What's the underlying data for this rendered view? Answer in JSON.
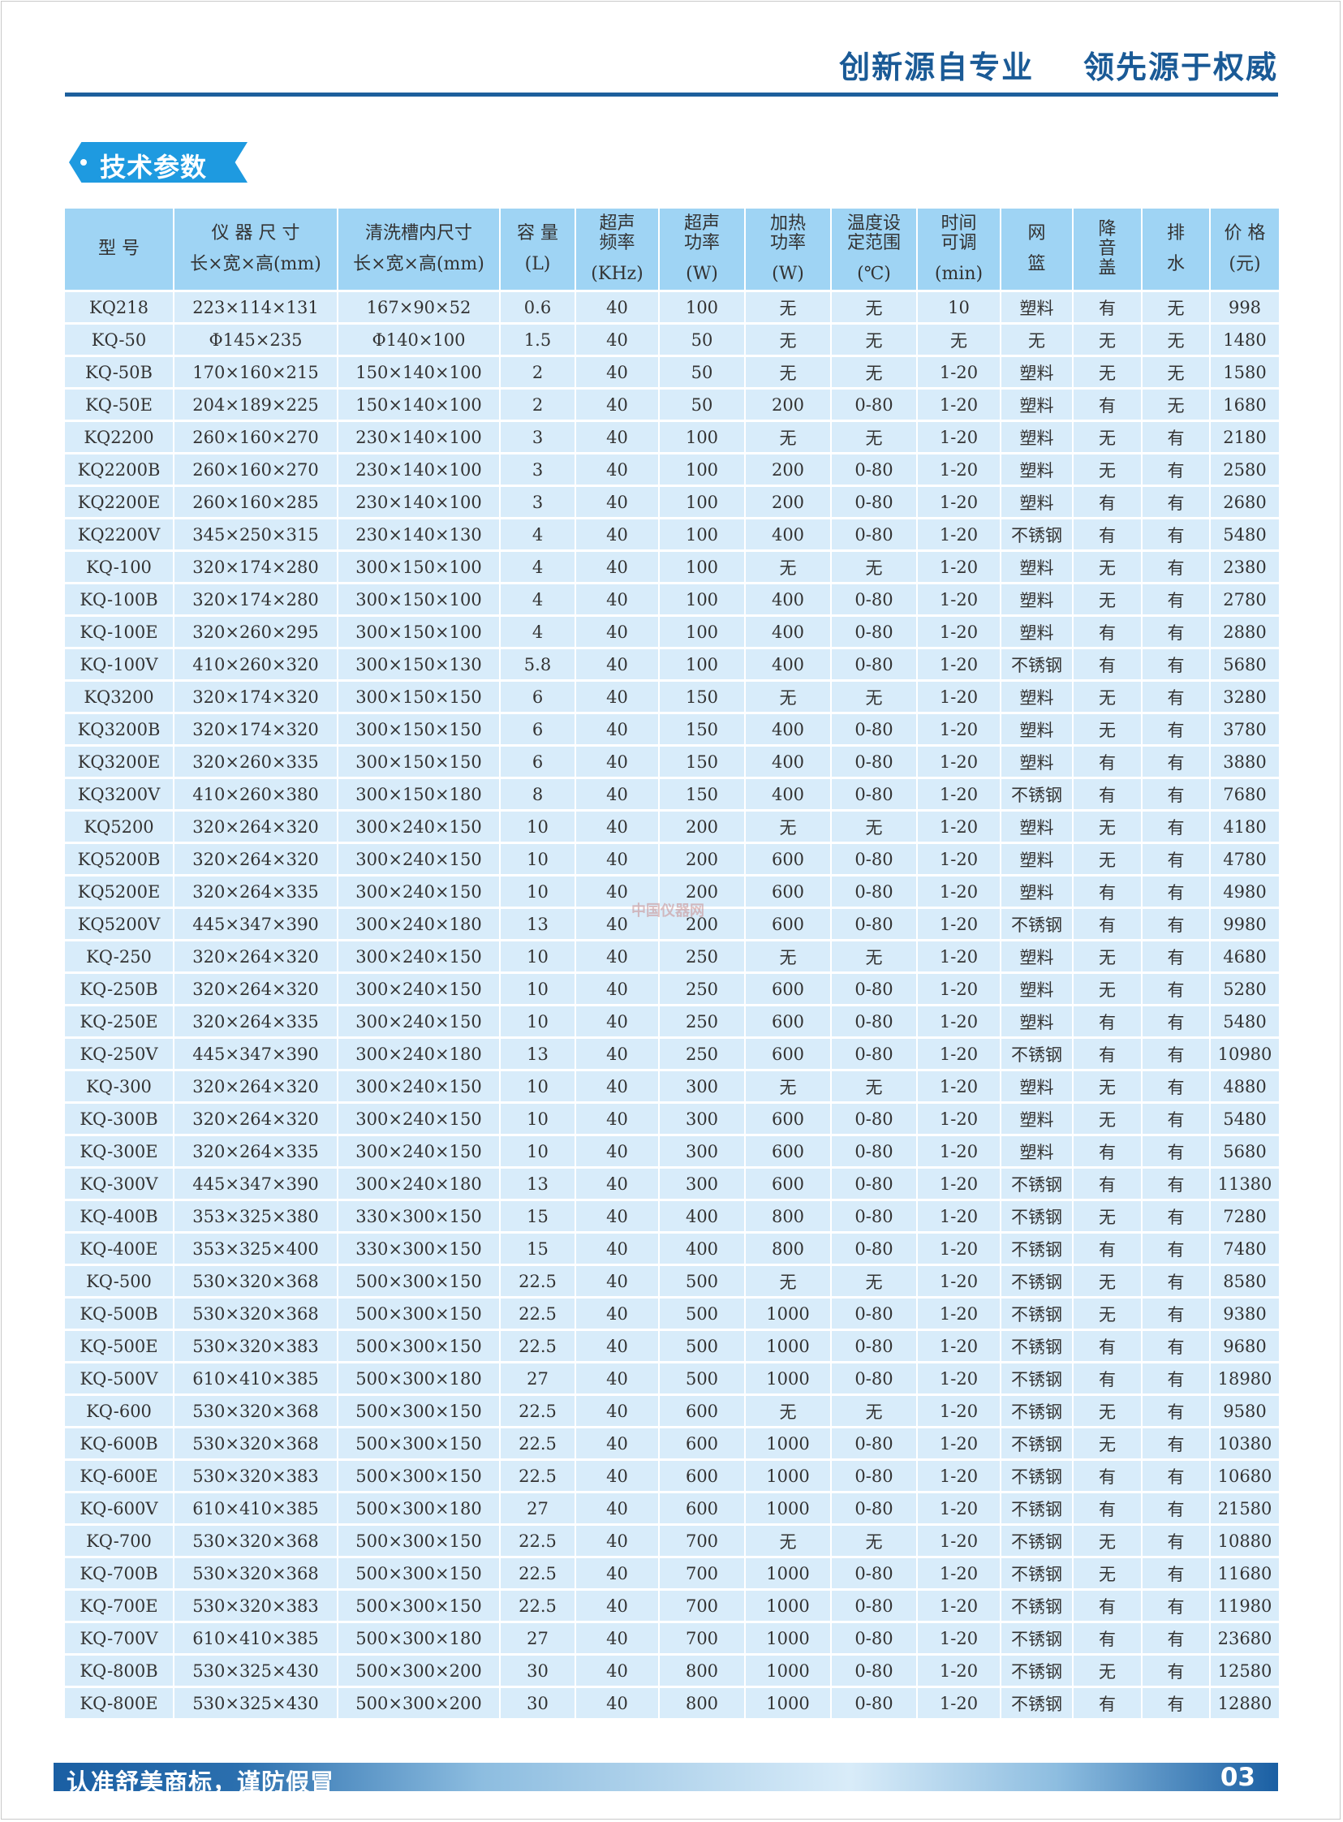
{
  "header": {
    "tagline": "创新源自专业    领先源于权威"
  },
  "section": {
    "title": "技术参数"
  },
  "table": {
    "columns": [
      {
        "label": "型 号",
        "unit": ""
      },
      {
        "label": "仪 器 尺 寸",
        "unit": "长×宽×高(mm)"
      },
      {
        "label": "清洗槽内尺寸",
        "unit": "长×宽×高(mm)"
      },
      {
        "label": "容 量",
        "unit": "(L)"
      },
      {
        "label": "超声频率",
        "unit": "(KHz)"
      },
      {
        "label": "超声功率",
        "unit": "(W)"
      },
      {
        "label": "加热功率",
        "unit": "(W)"
      },
      {
        "label": "温度设定范围",
        "unit": "(℃)"
      },
      {
        "label": "时间可调",
        "unit": "(min)"
      },
      {
        "label": "网",
        "unit": "篮"
      },
      {
        "label": "降音盖",
        "unit": ""
      },
      {
        "label": "排",
        "unit": "水"
      },
      {
        "label": "价 格",
        "unit": "(元)"
      }
    ],
    "rows": [
      [
        "KQ218",
        "223×114×131",
        "167×90×52",
        "0.6",
        "40",
        "100",
        "无",
        "无",
        "10",
        "塑料",
        "有",
        "无",
        "998"
      ],
      [
        "KQ-50",
        "Φ145×235",
        "Φ140×100",
        "1.5",
        "40",
        "50",
        "无",
        "无",
        "无",
        "无",
        "无",
        "无",
        "1480"
      ],
      [
        "KQ-50B",
        "170×160×215",
        "150×140×100",
        "2",
        "40",
        "50",
        "无",
        "无",
        "1-20",
        "塑料",
        "无",
        "无",
        "1580"
      ],
      [
        "KQ-50E",
        "204×189×225",
        "150×140×100",
        "2",
        "40",
        "50",
        "200",
        "0-80",
        "1-20",
        "塑料",
        "有",
        "无",
        "1680"
      ],
      [
        "KQ2200",
        "260×160×270",
        "230×140×100",
        "3",
        "40",
        "100",
        "无",
        "无",
        "1-20",
        "塑料",
        "无",
        "有",
        "2180"
      ],
      [
        "KQ2200B",
        "260×160×270",
        "230×140×100",
        "3",
        "40",
        "100",
        "200",
        "0-80",
        "1-20",
        "塑料",
        "无",
        "有",
        "2580"
      ],
      [
        "KQ2200E",
        "260×160×285",
        "230×140×100",
        "3",
        "40",
        "100",
        "200",
        "0-80",
        "1-20",
        "塑料",
        "有",
        "有",
        "2680"
      ],
      [
        "KQ2200V",
        "345×250×315",
        "230×140×130",
        "4",
        "40",
        "100",
        "400",
        "0-80",
        "1-20",
        "不锈钢",
        "有",
        "有",
        "5480"
      ],
      [
        "KQ-100",
        "320×174×280",
        "300×150×100",
        "4",
        "40",
        "100",
        "无",
        "无",
        "1-20",
        "塑料",
        "无",
        "有",
        "2380"
      ],
      [
        "KQ-100B",
        "320×174×280",
        "300×150×100",
        "4",
        "40",
        "100",
        "400",
        "0-80",
        "1-20",
        "塑料",
        "无",
        "有",
        "2780"
      ],
      [
        "KQ-100E",
        "320×260×295",
        "300×150×100",
        "4",
        "40",
        "100",
        "400",
        "0-80",
        "1-20",
        "塑料",
        "有",
        "有",
        "2880"
      ],
      [
        "KQ-100V",
        "410×260×320",
        "300×150×130",
        "5.8",
        "40",
        "100",
        "400",
        "0-80",
        "1-20",
        "不锈钢",
        "有",
        "有",
        "5680"
      ],
      [
        "KQ3200",
        "320×174×320",
        "300×150×150",
        "6",
        "40",
        "150",
        "无",
        "无",
        "1-20",
        "塑料",
        "无",
        "有",
        "3280"
      ],
      [
        "KQ3200B",
        "320×174×320",
        "300×150×150",
        "6",
        "40",
        "150",
        "400",
        "0-80",
        "1-20",
        "塑料",
        "无",
        "有",
        "3780"
      ],
      [
        "KQ3200E",
        "320×260×335",
        "300×150×150",
        "6",
        "40",
        "150",
        "400",
        "0-80",
        "1-20",
        "塑料",
        "有",
        "有",
        "3880"
      ],
      [
        "KQ3200V",
        "410×260×380",
        "300×150×180",
        "8",
        "40",
        "150",
        "400",
        "0-80",
        "1-20",
        "不锈钢",
        "有",
        "有",
        "7680"
      ],
      [
        "KQ5200",
        "320×264×320",
        "300×240×150",
        "10",
        "40",
        "200",
        "无",
        "无",
        "1-20",
        "塑料",
        "无",
        "有",
        "4180"
      ],
      [
        "KQ5200B",
        "320×264×320",
        "300×240×150",
        "10",
        "40",
        "200",
        "600",
        "0-80",
        "1-20",
        "塑料",
        "无",
        "有",
        "4780"
      ],
      [
        "KQ5200E",
        "320×264×335",
        "300×240×150",
        "10",
        "40",
        "200",
        "600",
        "0-80",
        "1-20",
        "塑料",
        "有",
        "有",
        "4980"
      ],
      [
        "KQ5200V",
        "445×347×390",
        "300×240×180",
        "13",
        "40",
        "200",
        "600",
        "0-80",
        "1-20",
        "不锈钢",
        "有",
        "有",
        "9980"
      ],
      [
        "KQ-250",
        "320×264×320",
        "300×240×150",
        "10",
        "40",
        "250",
        "无",
        "无",
        "1-20",
        "塑料",
        "无",
        "有",
        "4680"
      ],
      [
        "KQ-250B",
        "320×264×320",
        "300×240×150",
        "10",
        "40",
        "250",
        "600",
        "0-80",
        "1-20",
        "塑料",
        "无",
        "有",
        "5280"
      ],
      [
        "KQ-250E",
        "320×264×335",
        "300×240×150",
        "10",
        "40",
        "250",
        "600",
        "0-80",
        "1-20",
        "塑料",
        "有",
        "有",
        "5480"
      ],
      [
        "KQ-250V",
        "445×347×390",
        "300×240×180",
        "13",
        "40",
        "250",
        "600",
        "0-80",
        "1-20",
        "不锈钢",
        "有",
        "有",
        "10980"
      ],
      [
        "KQ-300",
        "320×264×320",
        "300×240×150",
        "10",
        "40",
        "300",
        "无",
        "无",
        "1-20",
        "塑料",
        "无",
        "有",
        "4880"
      ],
      [
        "KQ-300B",
        "320×264×320",
        "300×240×150",
        "10",
        "40",
        "300",
        "600",
        "0-80",
        "1-20",
        "塑料",
        "无",
        "有",
        "5480"
      ],
      [
        "KQ-300E",
        "320×264×335",
        "300×240×150",
        "10",
        "40",
        "300",
        "600",
        "0-80",
        "1-20",
        "塑料",
        "有",
        "有",
        "5680"
      ],
      [
        "KQ-300V",
        "445×347×390",
        "300×240×180",
        "13",
        "40",
        "300",
        "600",
        "0-80",
        "1-20",
        "不锈钢",
        "有",
        "有",
        "11380"
      ],
      [
        "KQ-400B",
        "353×325×380",
        "330×300×150",
        "15",
        "40",
        "400",
        "800",
        "0-80",
        "1-20",
        "不锈钢",
        "无",
        "有",
        "7280"
      ],
      [
        "KQ-400E",
        "353×325×400",
        "330×300×150",
        "15",
        "40",
        "400",
        "800",
        "0-80",
        "1-20",
        "不锈钢",
        "有",
        "有",
        "7480"
      ],
      [
        "KQ-500",
        "530×320×368",
        "500×300×150",
        "22.5",
        "40",
        "500",
        "无",
        "无",
        "1-20",
        "不锈钢",
        "无",
        "有",
        "8580"
      ],
      [
        "KQ-500B",
        "530×320×368",
        "500×300×150",
        "22.5",
        "40",
        "500",
        "1000",
        "0-80",
        "1-20",
        "不锈钢",
        "无",
        "有",
        "9380"
      ],
      [
        "KQ-500E",
        "530×320×383",
        "500×300×150",
        "22.5",
        "40",
        "500",
        "1000",
        "0-80",
        "1-20",
        "不锈钢",
        "有",
        "有",
        "9680"
      ],
      [
        "KQ-500V",
        "610×410×385",
        "500×300×180",
        "27",
        "40",
        "500",
        "1000",
        "0-80",
        "1-20",
        "不锈钢",
        "有",
        "有",
        "18980"
      ],
      [
        "KQ-600",
        "530×320×368",
        "500×300×150",
        "22.5",
        "40",
        "600",
        "无",
        "无",
        "1-20",
        "不锈钢",
        "无",
        "有",
        "9580"
      ],
      [
        "KQ-600B",
        "530×320×368",
        "500×300×150",
        "22.5",
        "40",
        "600",
        "1000",
        "0-80",
        "1-20",
        "不锈钢",
        "无",
        "有",
        "10380"
      ],
      [
        "KQ-600E",
        "530×320×383",
        "500×300×150",
        "22.5",
        "40",
        "600",
        "1000",
        "0-80",
        "1-20",
        "不锈钢",
        "有",
        "有",
        "10680"
      ],
      [
        "KQ-600V",
        "610×410×385",
        "500×300×180",
        "27",
        "40",
        "600",
        "1000",
        "0-80",
        "1-20",
        "不锈钢",
        "有",
        "有",
        "21580"
      ],
      [
        "KQ-700",
        "530×320×368",
        "500×300×150",
        "22.5",
        "40",
        "700",
        "无",
        "无",
        "1-20",
        "不锈钢",
        "无",
        "有",
        "10880"
      ],
      [
        "KQ-700B",
        "530×320×368",
        "500×300×150",
        "22.5",
        "40",
        "700",
        "1000",
        "0-80",
        "1-20",
        "不锈钢",
        "无",
        "有",
        "11680"
      ],
      [
        "KQ-700E",
        "530×320×383",
        "500×300×150",
        "22.5",
        "40",
        "700",
        "1000",
        "0-80",
        "1-20",
        "不锈钢",
        "有",
        "有",
        "11980"
      ],
      [
        "KQ-700V",
        "610×410×385",
        "500×300×180",
        "27",
        "40",
        "700",
        "1000",
        "0-80",
        "1-20",
        "不锈钢",
        "有",
        "有",
        "23680"
      ],
      [
        "KQ-800B",
        "530×325×430",
        "500×300×200",
        "30",
        "40",
        "800",
        "1000",
        "0-80",
        "1-20",
        "不锈钢",
        "无",
        "有",
        "12580"
      ],
      [
        "KQ-800E",
        "530×325×430",
        "500×300×200",
        "30",
        "40",
        "800",
        "1000",
        "0-80",
        "1-20",
        "不锈钢",
        "有",
        "有",
        "12880"
      ]
    ]
  },
  "watermark": "中国仪器网",
  "footer": {
    "slogan": "认准舒美商标，谨防假冒",
    "page_number": "03"
  },
  "colors": {
    "brand_dark": "#1a5a96",
    "tag_blue": "#1e9ae0",
    "header_cell": "#9fd4f4",
    "body_cell": "#d8ecfa"
  }
}
